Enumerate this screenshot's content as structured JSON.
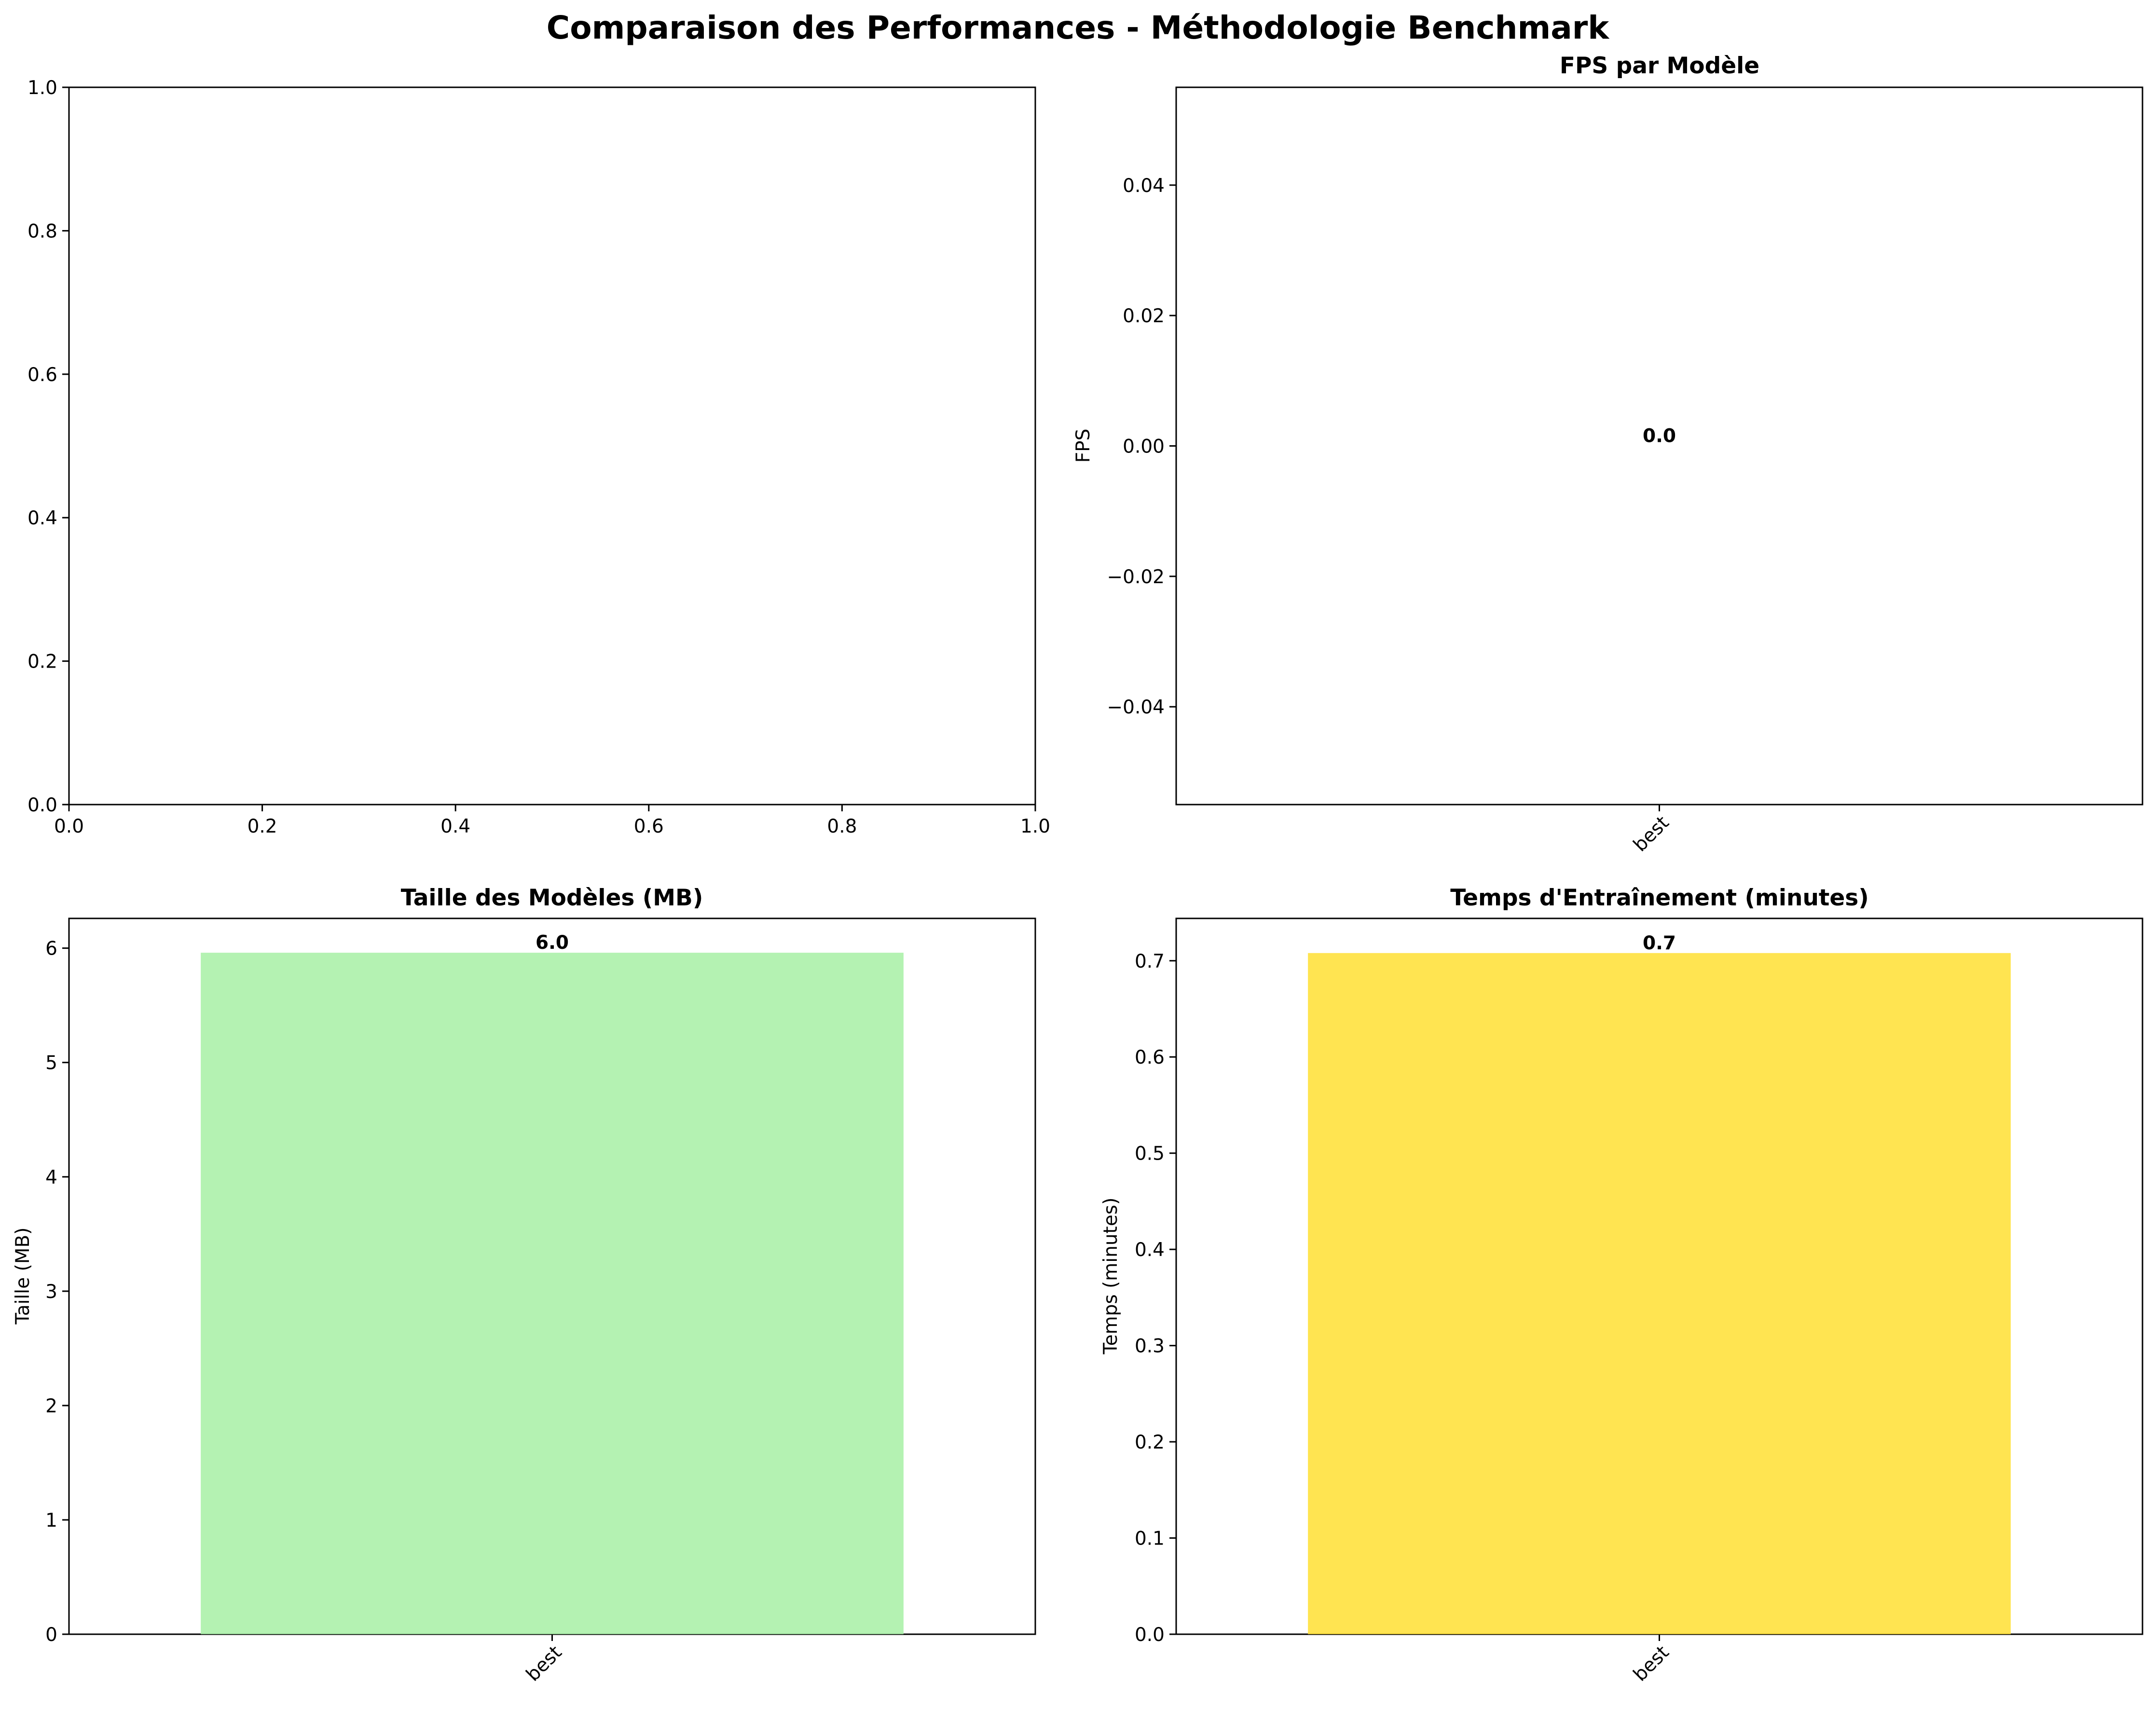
{
  "figure": {
    "suptitle": "Comparaison des Performances - Méthodologie Benchmark"
  },
  "chart_data": [
    {
      "type": "bar",
      "position": "top-left",
      "title": "",
      "xlabel": "",
      "ylabel": "",
      "categories": [],
      "values": [],
      "xlim": [
        0,
        1
      ],
      "ylim": [
        0,
        1
      ],
      "xticks": [
        "0.0",
        "0.2",
        "0.4",
        "0.6",
        "0.8",
        "1.0"
      ],
      "yticks": [
        "0.0",
        "0.2",
        "0.4",
        "0.6",
        "0.8",
        "1.0"
      ],
      "grid": false
    },
    {
      "type": "bar",
      "position": "top-right",
      "title": "FPS par Modèle",
      "xlabel": "",
      "ylabel": "FPS",
      "categories": [
        "best"
      ],
      "values": [
        0.0
      ],
      "data_labels": [
        "0.0"
      ],
      "color": "#87ceeb",
      "ylim": [
        -0.055,
        0.055
      ],
      "yticks": [
        "−0.04",
        "−0.02",
        "0.00",
        "0.02",
        "0.04"
      ],
      "grid": false
    },
    {
      "type": "bar",
      "position": "bottom-left",
      "title": "Taille des Modèles (MB)",
      "xlabel": "",
      "ylabel": "Taille (MB)",
      "categories": [
        "best"
      ],
      "values": [
        5.96
      ],
      "data_labels": [
        "6.0"
      ],
      "color": "#a7f0a5",
      "ylim": [
        0,
        6.26
      ],
      "yticks": [
        "0",
        "1",
        "2",
        "3",
        "4",
        "5",
        "6"
      ],
      "grid": false
    },
    {
      "type": "bar",
      "position": "bottom-right",
      "title": "Temps d'Entraînement (minutes)",
      "xlabel": "",
      "ylabel": "Temps (minutes)",
      "categories": [
        "best"
      ],
      "values": [
        0.708
      ],
      "data_labels": [
        "0.7"
      ],
      "color": "#ffdf33",
      "ylim": [
        0,
        0.744
      ],
      "yticks": [
        "0.0",
        "0.1",
        "0.2",
        "0.3",
        "0.4",
        "0.5",
        "0.6",
        "0.7"
      ],
      "grid": false
    }
  ]
}
